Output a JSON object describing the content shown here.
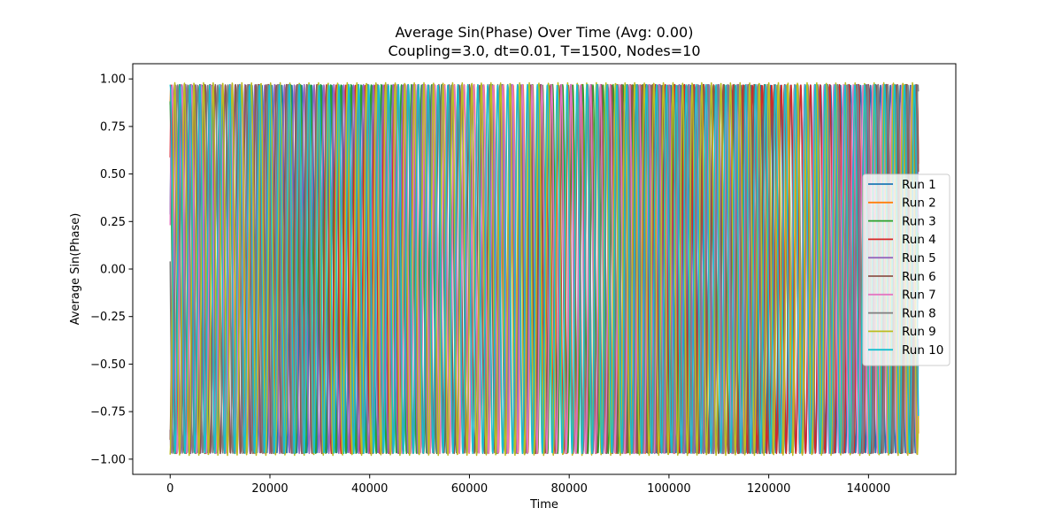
{
  "chart_data": {
    "type": "line",
    "title": "Average Sin(Phase) Over Time (Avg: 0.00)",
    "subtitle": "Coupling=3.0, dt=0.01, T=1500, Nodes=10",
    "xlabel": "Time",
    "ylabel": "Average Sin(Phase)",
    "xlim": [
      -7500,
      157500
    ],
    "ylim": [
      -1.08,
      1.08
    ],
    "x_ticks": [
      0,
      20000,
      40000,
      60000,
      80000,
      100000,
      120000,
      140000
    ],
    "x_tick_labels": [
      "0",
      "20000",
      "40000",
      "60000",
      "80000",
      "100000",
      "120000",
      "140000"
    ],
    "y_ticks": [
      1.0,
      0.75,
      0.5,
      0.25,
      0.0,
      -0.25,
      -0.5,
      -0.75,
      -1.0
    ],
    "y_tick_labels": [
      "1.00",
      "0.75",
      "0.50",
      "0.25",
      "0.00",
      "−0.25",
      "−0.50",
      "−0.75",
      "−1.00"
    ],
    "grid": false,
    "legend_position": "right",
    "x_range": [
      0,
      150000
    ],
    "series": [
      {
        "name": "Run 1",
        "color": "#1f77b4",
        "amplitude": 0.97,
        "cycles": 75.0,
        "phase": 0.3
      },
      {
        "name": "Run 2",
        "color": "#ff7f0e",
        "amplitude": 0.97,
        "cycles": 76.5,
        "phase": 1.1
      },
      {
        "name": "Run 3",
        "color": "#2ca02c",
        "amplitude": 0.97,
        "cycles": 74.2,
        "phase": 2.0
      },
      {
        "name": "Run 4",
        "color": "#d62728",
        "amplitude": 0.97,
        "cycles": 77.3,
        "phase": 0.65
      },
      {
        "name": "Run 5",
        "color": "#9467bd",
        "amplitude": 0.97,
        "cycles": 75.8,
        "phase": 4.2
      },
      {
        "name": "Run 6",
        "color": "#8c564b",
        "amplitude": 0.97,
        "cycles": 73.6,
        "phase": 5.1
      },
      {
        "name": "Run 7",
        "color": "#e377c2",
        "amplitude": 0.97,
        "cycles": 76.9,
        "phase": 0.24
      },
      {
        "name": "Run 8",
        "color": "#7f7f7f",
        "amplitude": 0.97,
        "cycles": 74.8,
        "phase": 3.1
      },
      {
        "name": "Run 9",
        "color": "#bcbd22",
        "amplitude": 0.98,
        "cycles": 78.1,
        "phase": 4.8
      },
      {
        "name": "Run 10",
        "color": "#17becf",
        "amplitude": 0.97,
        "cycles": 75.4,
        "phase": 1.55
      }
    ]
  }
}
